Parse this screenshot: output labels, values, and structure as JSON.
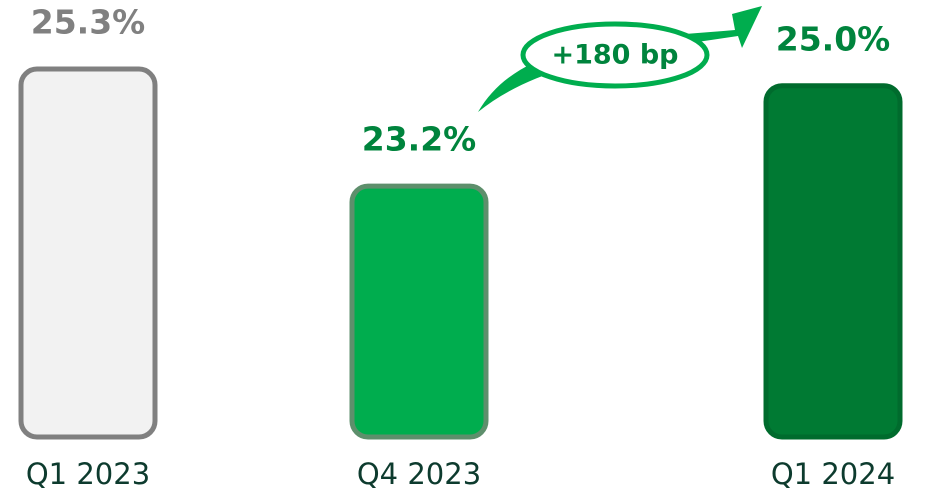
{
  "chart_data": {
    "type": "bar",
    "categories": [
      "Q1 2023",
      "Q4 2023",
      "Q1 2024"
    ],
    "values": [
      25.3,
      23.2,
      25.0
    ],
    "value_labels": [
      "25.3%",
      "23.2%",
      "25.0%"
    ],
    "colors": [
      "#f2f2f2",
      "#00ad4e",
      "#007a33"
    ],
    "stroke_colors": [
      "#808080",
      "#5e8f6c",
      "#006b2d"
    ],
    "label_colors": [
      "#808080",
      "#00843d",
      "#00843d"
    ],
    "ylim": [
      18.7,
      26
    ],
    "annotation": "+180 bp"
  }
}
